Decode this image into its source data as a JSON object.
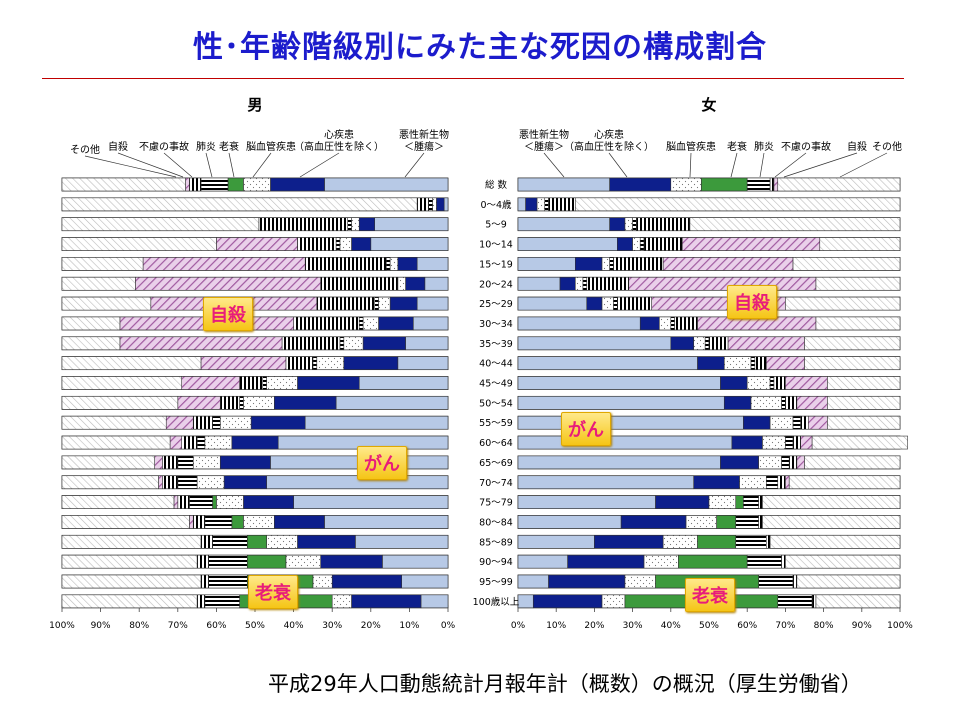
{
  "page": {
    "title": "性･年齢階級別にみた主な死因の構成割合",
    "footer": "平成29年人口動態統計月報年計（概数）の概況（厚生労働省）"
  },
  "colors": {
    "cancer": "#b7c9e6",
    "heart": "#0d1f8c",
    "cerebro": "#ffffff",
    "senility": "#3c9a3c",
    "pneumonia": "#ffffff",
    "accident": "#ffffff",
    "suicide": "#ead0ea",
    "other": "#ffffff",
    "title": "#1c1ccc",
    "badge_text": "#e81c7a"
  },
  "chart_data": [
    {
      "type": "bar",
      "orientation": "horizontal-stacked",
      "title": "男",
      "direction": "right-to-left",
      "categories": [
        "総 数",
        "0～4歳",
        "5～9",
        "10～14",
        "15～19",
        "20～24",
        "25～29",
        "30～34",
        "35～39",
        "40～44",
        "45～49",
        "50～54",
        "55～59",
        "60～64",
        "65～69",
        "70～74",
        "75～79",
        "80～84",
        "85～89",
        "90～94",
        "95～99",
        "100歳以上"
      ],
      "series": [
        {
          "name": "悪性新生物＜腫瘍＞",
          "values": [
            32,
            1,
            19,
            20,
            8,
            6,
            8,
            9,
            11,
            13,
            23,
            29,
            37,
            44,
            46,
            47,
            40,
            32,
            24,
            17,
            12,
            7
          ]
        },
        {
          "name": "心疾患（高血圧性を除く）",
          "values": [
            14,
            2,
            4,
            5,
            5,
            5,
            7,
            9,
            11,
            14,
            16,
            16,
            14,
            12,
            13,
            11,
            13,
            13,
            15,
            16,
            18,
            18
          ]
        },
        {
          "name": "脳血管疾患",
          "values": [
            7,
            1,
            2,
            3,
            2,
            2,
            3,
            4,
            5,
            7,
            8,
            8,
            8,
            7,
            7,
            7,
            7,
            8,
            8,
            9,
            5,
            5
          ]
        },
        {
          "name": "老衰",
          "values": [
            4,
            0,
            0,
            0,
            0,
            0,
            0,
            0,
            0,
            0,
            0,
            0,
            0,
            0,
            0,
            0,
            1,
            3,
            5,
            10,
            17,
            24
          ]
        },
        {
          "name": "肺炎",
          "values": [
            7,
            1,
            1,
            1,
            1,
            0,
            1,
            1,
            1,
            1,
            1,
            1,
            2,
            2,
            4,
            5,
            6,
            7,
            9,
            10,
            10,
            9
          ]
        },
        {
          "name": "不慮の事故",
          "values": [
            3,
            3,
            23,
            10,
            21,
            20,
            15,
            17,
            15,
            7,
            6,
            5,
            5,
            4,
            4,
            4,
            3,
            3,
            3,
            3,
            2,
            2
          ]
        },
        {
          "name": "自殺",
          "values": [
            1,
            0,
            0,
            21,
            42,
            48,
            43,
            45,
            42,
            22,
            15,
            11,
            7,
            3,
            2,
            1,
            1,
            1,
            0,
            0,
            0,
            0
          ]
        },
        {
          "name": "その他",
          "values": [
            32,
            92,
            51,
            40,
            21,
            19,
            23,
            15,
            15,
            36,
            31,
            30,
            27,
            28,
            24,
            25,
            29,
            33,
            36,
            35,
            36,
            35
          ]
        }
      ],
      "xlim": [
        100,
        0
      ],
      "ticks": [
        "100%",
        "90%",
        "80%",
        "70%",
        "60%",
        "50%",
        "40%",
        "30%",
        "20%",
        "10%",
        "0%"
      ]
    },
    {
      "type": "bar",
      "orientation": "horizontal-stacked",
      "title": "女",
      "direction": "left-to-right",
      "categories": [
        "総 数",
        "0～4歳",
        "5～9",
        "10～14",
        "15～19",
        "20～24",
        "25～29",
        "30～34",
        "35～39",
        "40～44",
        "45～49",
        "50～54",
        "55～59",
        "60～64",
        "65～69",
        "70～74",
        "75～79",
        "80～84",
        "85～89",
        "90～94",
        "95～99",
        "100歳以上"
      ],
      "series": [
        {
          "name": "悪性新生物＜腫瘍＞",
          "values": [
            24,
            2,
            24,
            26,
            15,
            11,
            18,
            32,
            40,
            47,
            53,
            54,
            59,
            56,
            53,
            46,
            36,
            27,
            20,
            13,
            8,
            4
          ]
        },
        {
          "name": "心疾患（高血圧性を除く）",
          "values": [
            16,
            3,
            4,
            4,
            7,
            4,
            4,
            5,
            6,
            7,
            7,
            7,
            7,
            8,
            10,
            12,
            14,
            17,
            18,
            20,
            20,
            18
          ]
        },
        {
          "name": "脳血管疾患",
          "values": [
            8,
            2,
            2,
            2,
            2,
            2,
            3,
            3,
            3,
            7,
            6,
            8,
            6,
            6,
            6,
            7,
            7,
            8,
            9,
            9,
            8,
            6
          ]
        },
        {
          "name": "老衰",
          "values": [
            12,
            0,
            0,
            0,
            0,
            0,
            0,
            0,
            0,
            0,
            0,
            0,
            0,
            0,
            0,
            0,
            2,
            5,
            10,
            18,
            27,
            40
          ]
        },
        {
          "name": "肺炎",
          "values": [
            6,
            1,
            1,
            1,
            1,
            1,
            1,
            1,
            1,
            1,
            1,
            1,
            2,
            2,
            2,
            3,
            4,
            6,
            8,
            9,
            9,
            9
          ]
        },
        {
          "name": "不慮の事故",
          "values": [
            1,
            7,
            14,
            10,
            13,
            11,
            9,
            6,
            5,
            3,
            3,
            3,
            2,
            2,
            2,
            2,
            1,
            1,
            1,
            1,
            1,
            1
          ]
        },
        {
          "name": "自殺",
          "values": [
            1,
            0,
            0,
            36,
            34,
            49,
            35,
            31,
            20,
            10,
            11,
            8,
            5,
            3,
            2,
            1,
            0,
            0,
            0,
            0,
            0,
            0
          ]
        },
        {
          "name": "その他",
          "values": [
            32,
            85,
            55,
            21,
            28,
            22,
            30,
            22,
            25,
            25,
            19,
            19,
            19,
            25,
            25,
            29,
            36,
            36,
            34,
            30,
            27,
            22
          ]
        }
      ],
      "xlim": [
        0,
        100
      ],
      "ticks": [
        "0%",
        "10%",
        "20%",
        "30%",
        "40%",
        "50%",
        "60%",
        "70%",
        "80%",
        "90%",
        "100%"
      ]
    }
  ],
  "labels": {
    "male_legend": [
      "その他",
      "自殺",
      "不慮の事故",
      "肺炎",
      "老衰",
      "脳血管疾患",
      "心疾患\n（高血圧性を除く）",
      "悪性新生物\n＜腫瘍＞"
    ],
    "female_legend": [
      "悪性新生物\n＜腫瘍＞",
      "心疾患\n（高血圧性を除く）",
      "脳血管疾患",
      "老衰",
      "肺炎",
      "不慮の事故",
      "自殺",
      "その他"
    ]
  },
  "badges": {
    "male_suicide": "自殺",
    "male_cancer": "がん",
    "male_senility": "老衰",
    "female_suicide": "自殺",
    "female_cancer": "がん",
    "female_senility": "老衰"
  }
}
